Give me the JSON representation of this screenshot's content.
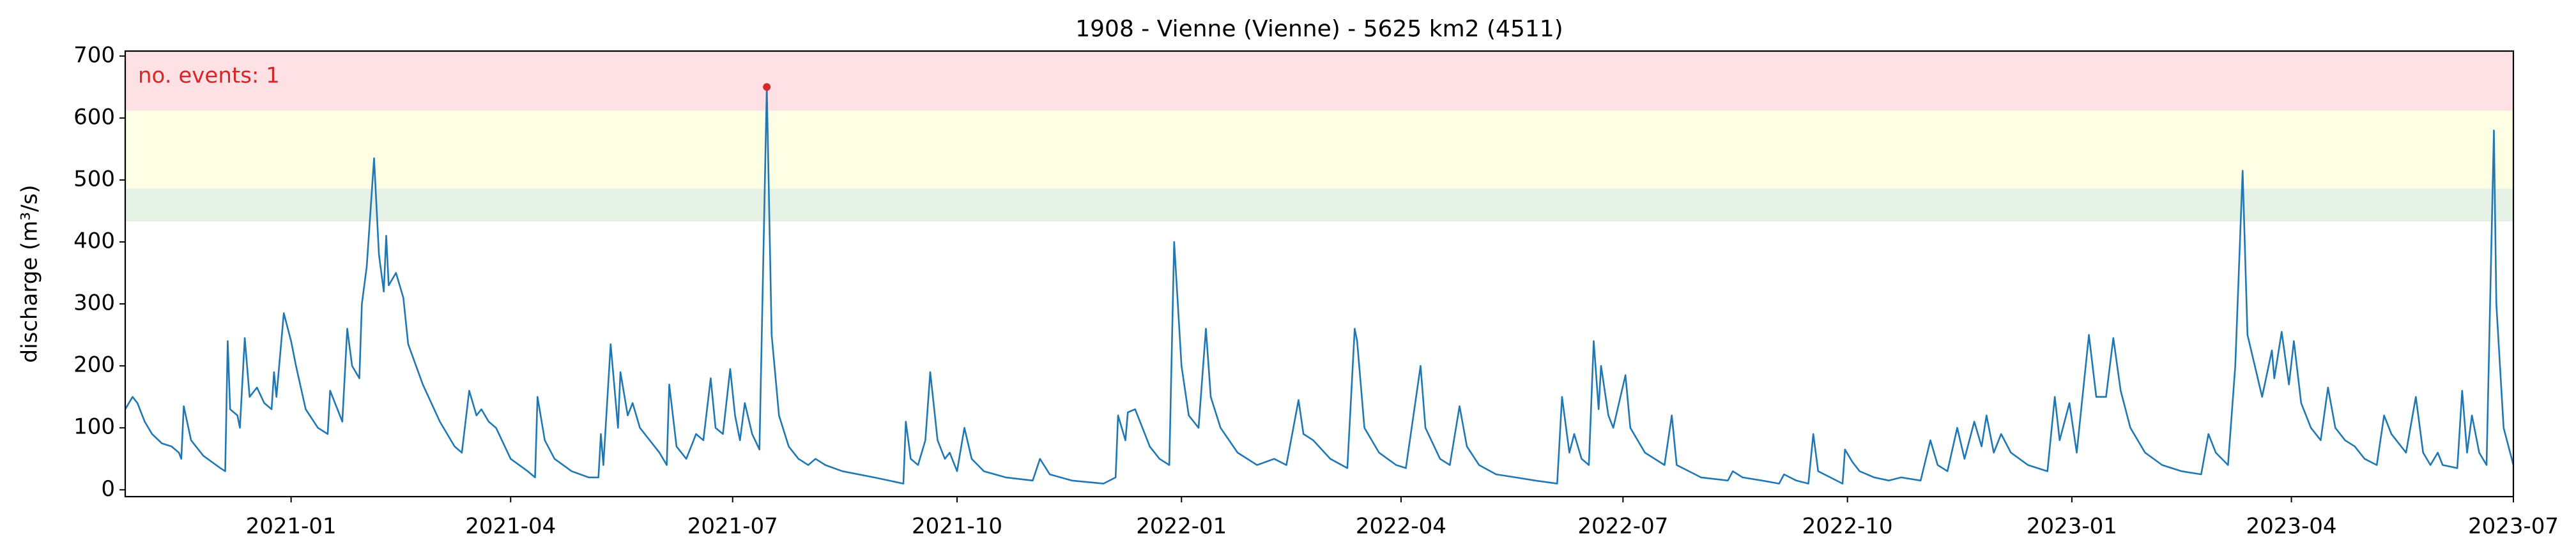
{
  "chart_data": {
    "type": "line",
    "title": "1908 - Vienne (Vienne) - 5625 km2 (4511)",
    "ylabel": "discharge (m³/s)",
    "annotation": "no. events: 1",
    "annotation_color": "#d62728",
    "color": "#1f77b4",
    "xlim": [
      18560,
      19539
    ],
    "xticks": [
      {
        "value": 18628,
        "label": "2021-01"
      },
      {
        "value": 18718,
        "label": "2021-04"
      },
      {
        "value": 18809,
        "label": "2021-07"
      },
      {
        "value": 18901,
        "label": "2021-10"
      },
      {
        "value": 18993,
        "label": "2022-01"
      },
      {
        "value": 19083,
        "label": "2022-04"
      },
      {
        "value": 19174,
        "label": "2022-07"
      },
      {
        "value": 19266,
        "label": "2022-10"
      },
      {
        "value": 19358,
        "label": "2023-01"
      },
      {
        "value": 19448,
        "label": "2023-04"
      },
      {
        "value": 19539,
        "label": "2023-07"
      }
    ],
    "ylim": [
      -11,
      708
    ],
    "yticks": [
      0,
      100,
      200,
      300,
      400,
      500,
      600,
      700
    ],
    "thresholds": [
      433,
      486,
      612
    ],
    "threshold_colors": [
      "#e5f1e5",
      "#fefee4",
      "#fee1e5"
    ],
    "events": {
      "x": [
        18823
      ],
      "values": [
        650
      ],
      "color": "#d62728"
    },
    "x": [
      18560,
      18563,
      18565,
      18568,
      18571,
      18575,
      18579,
      18582,
      18583,
      18584,
      18587,
      18592,
      18599,
      18601,
      18602,
      18603,
      18606,
      18607,
      18609,
      18611,
      18614,
      18617,
      18620,
      18621,
      18622,
      18625,
      18628,
      18630,
      18634,
      18639,
      18643,
      18644,
      18647,
      18649,
      18651,
      18653,
      18656,
      18657,
      18659,
      18662,
      18664,
      18666,
      18667,
      18668,
      18671,
      18674,
      18676,
      18682,
      18689,
      18695,
      18698,
      18701,
      18704,
      18706,
      18709,
      18712,
      18718,
      18725,
      18728,
      18729,
      18732,
      18736,
      18743,
      18750,
      18754,
      18755,
      18756,
      18759,
      18762,
      18763,
      18766,
      18768,
      18771,
      18775,
      18779,
      18782,
      18783,
      18786,
      18790,
      18794,
      18797,
      18800,
      18802,
      18805,
      18808,
      18810,
      18812,
      18814,
      18817,
      18820,
      18823,
      18825,
      18828,
      18832,
      18836,
      18840,
      18843,
      18847,
      18854,
      18867,
      18879,
      18880,
      18882,
      18885,
      18888,
      18890,
      18893,
      18896,
      18898,
      18901,
      18904,
      18907,
      18912,
      18921,
      18932,
      18935,
      18939,
      18948,
      18961,
      18966,
      18967,
      18970,
      18971,
      18974,
      18977,
      18980,
      18984,
      18988,
      18990,
      18993,
      18996,
      19000,
      19003,
      19005,
      19009,
      19016,
      19024,
      19031,
      19036,
      19041,
      19043,
      19047,
      19054,
      19061,
      19064,
      19065,
      19068,
      19074,
      19081,
      19085,
      19091,
      19093,
      19099,
      19103,
      19107,
      19110,
      19115,
      19122,
      19130,
      19138,
      19147,
      19149,
      19152,
      19154,
      19157,
      19160,
      19162,
      19164,
      19165,
      19168,
      19170,
      19175,
      19177,
      19183,
      19191,
      19194,
      19196,
      19206,
      19217,
      19219,
      19223,
      19231,
      19238,
      19240,
      19245,
      19250,
      19252,
      19254,
      19259,
      19264,
      19265,
      19268,
      19271,
      19277,
      19283,
      19288,
      19296,
      19300,
      19303,
      19307,
      19311,
      19314,
      19318,
      19321,
      19323,
      19326,
      19329,
      19333,
      19340,
      19348,
      19351,
      19353,
      19357,
      19360,
      19365,
      19368,
      19372,
      19375,
      19378,
      19382,
      19388,
      19395,
      19403,
      19411,
      19414,
      19417,
      19422,
      19425,
      19428,
      19430,
      19433,
      19436,
      19440,
      19441,
      19444,
      19447,
      19449,
      19452,
      19456,
      19460,
      19463,
      19466,
      19470,
      19474,
      19478,
      19483,
      19486,
      19489,
      19493,
      19495,
      19499,
      19502,
      19505,
      19508,
      19510,
      19516,
      19518,
      19520,
      19522,
      19525,
      19528,
      19531,
      19532,
      19535,
      19539
    ],
    "values": [
      130,
      150,
      140,
      110,
      90,
      75,
      70,
      60,
      50,
      135,
      80,
      55,
      35,
      30,
      240,
      130,
      120,
      100,
      245,
      150,
      165,
      140,
      130,
      190,
      150,
      285,
      240,
      200,
      130,
      100,
      90,
      160,
      130,
      110,
      260,
      200,
      180,
      300,
      360,
      535,
      380,
      320,
      410,
      330,
      350,
      310,
      235,
      170,
      110,
      70,
      60,
      160,
      120,
      130,
      110,
      100,
      50,
      30,
      20,
      150,
      80,
      50,
      30,
      20,
      20,
      90,
      40,
      235,
      100,
      190,
      120,
      140,
      100,
      80,
      60,
      40,
      170,
      70,
      50,
      90,
      80,
      180,
      100,
      90,
      195,
      120,
      80,
      140,
      90,
      65,
      650,
      250,
      120,
      70,
      50,
      40,
      50,
      40,
      30,
      20,
      10,
      110,
      50,
      40,
      80,
      190,
      80,
      50,
      60,
      30,
      100,
      50,
      30,
      20,
      15,
      50,
      25,
      15,
      10,
      20,
      120,
      80,
      125,
      130,
      100,
      70,
      50,
      40,
      400,
      200,
      120,
      100,
      260,
      150,
      100,
      60,
      40,
      50,
      40,
      145,
      90,
      80,
      50,
      35,
      260,
      240,
      100,
      60,
      40,
      35,
      200,
      100,
      50,
      40,
      135,
      70,
      40,
      25,
      20,
      15,
      10,
      150,
      60,
      90,
      50,
      40,
      240,
      130,
      200,
      120,
      100,
      185,
      100,
      60,
      40,
      120,
      40,
      20,
      15,
      30,
      20,
      15,
      10,
      25,
      15,
      10,
      90,
      30,
      20,
      10,
      65,
      45,
      30,
      20,
      15,
      20,
      15,
      80,
      40,
      30,
      100,
      50,
      110,
      70,
      120,
      60,
      90,
      60,
      40,
      30,
      150,
      80,
      140,
      60,
      250,
      150,
      150,
      245,
      160,
      100,
      60,
      40,
      30,
      25,
      90,
      60,
      40,
      200,
      515,
      250,
      200,
      150,
      225,
      180,
      255,
      170,
      240,
      140,
      100,
      80,
      165,
      100,
      80,
      70,
      50,
      40,
      120,
      90,
      70,
      60,
      150,
      60,
      40,
      60,
      40,
      35,
      160,
      60,
      120,
      60,
      40,
      580,
      300,
      100,
      40
    ]
  }
}
